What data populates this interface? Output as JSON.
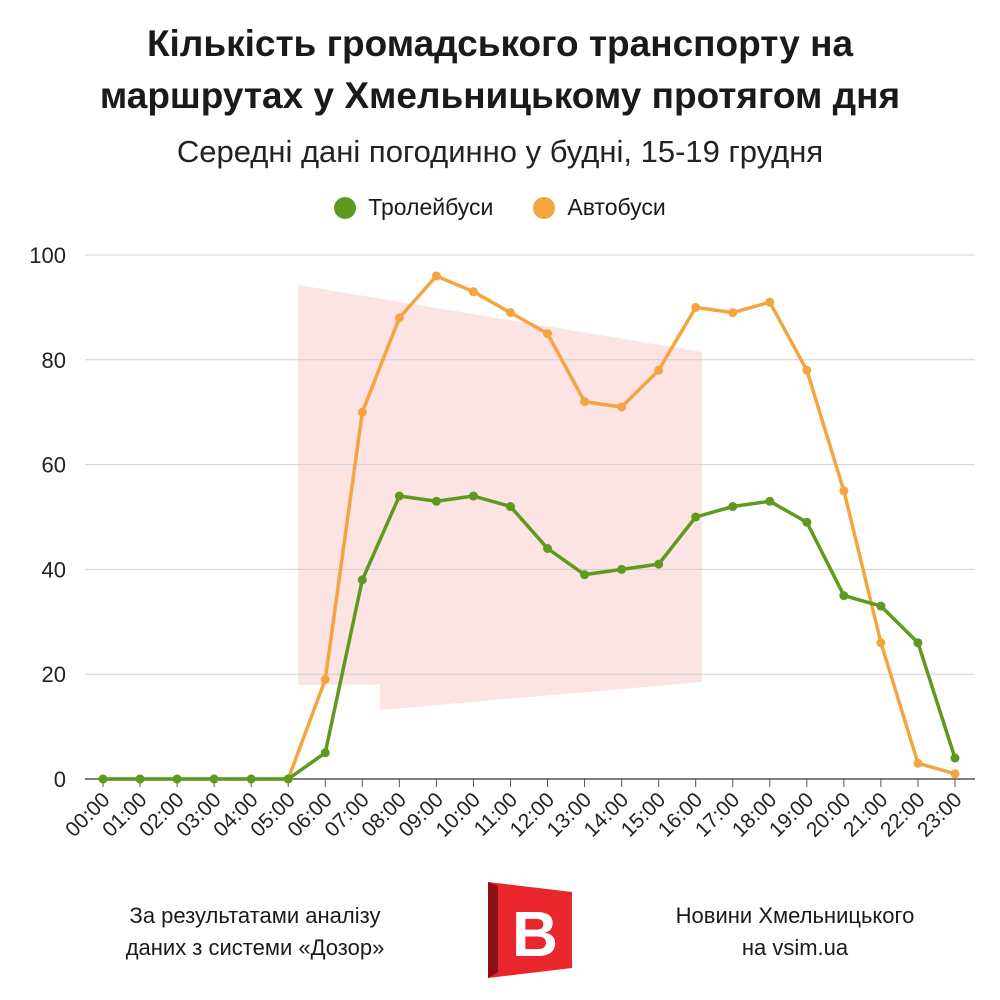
{
  "title_line1": "Кількість громадського транспорту на",
  "title_line2": "маршрутах у Хмельницькому протягом дня",
  "subtitle": "Середні дані погодинно у будні, 15-19 грудня",
  "footer": {
    "left_line1": "За результатами аналізу",
    "left_line2": "даних з системи «Дозор»",
    "right_line1": "Новини Хмельницького",
    "right_line2": "на vsim.ua"
  },
  "logo": {
    "letter": "B",
    "color": "#e8262b"
  },
  "chart_data": {
    "type": "line",
    "categories": [
      "00:00",
      "01:00",
      "02:00",
      "03:00",
      "04:00",
      "05:00",
      "06:00",
      "07:00",
      "08:00",
      "09:00",
      "10:00",
      "11:00",
      "12:00",
      "13:00",
      "14:00",
      "15:00",
      "16:00",
      "17:00",
      "18:00",
      "19:00",
      "20:00",
      "21:00",
      "22:00",
      "23:00"
    ],
    "series": [
      {
        "name": "Тролейбуси",
        "color": "#5d9a1e",
        "values": [
          0,
          0,
          0,
          0,
          0,
          0,
          5,
          38,
          54,
          53,
          54,
          52,
          44,
          39,
          40,
          41,
          50,
          52,
          53,
          49,
          35,
          33,
          26,
          4
        ]
      },
      {
        "name": "Автобуси",
        "color": "#f5a540",
        "values": [
          0,
          0,
          0,
          0,
          0,
          0,
          19,
          70,
          88,
          96,
          93,
          89,
          85,
          72,
          71,
          78,
          90,
          89,
          91,
          78,
          55,
          26,
          3,
          1
        ]
      }
    ],
    "ylim": [
      0,
      100
    ],
    "yticks": [
      0,
      20,
      40,
      60,
      80,
      100
    ],
    "grid": true,
    "legend": "top-center"
  }
}
